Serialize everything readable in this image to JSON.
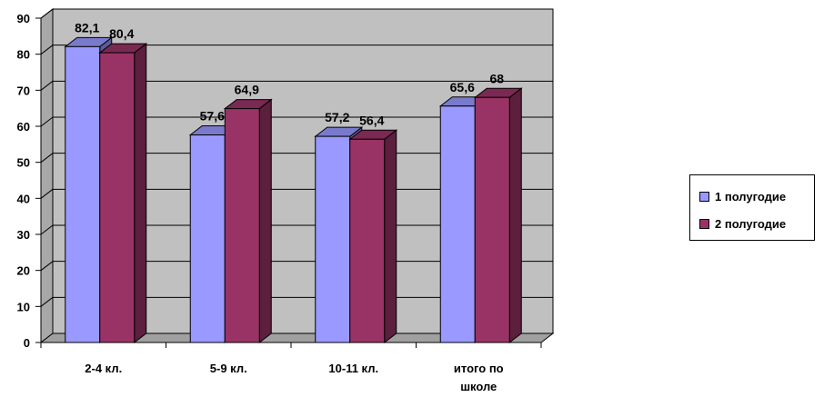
{
  "chart_data": {
    "type": "bar",
    "categories": [
      "2-4 кл.",
      "5-9 кл.",
      "10-11 кл.",
      "итого по школе"
    ],
    "series": [
      {
        "name": "1 полугодие",
        "values": [
          82.1,
          57.6,
          57.2,
          65.6
        ],
        "labels": [
          "82,1",
          "57,6",
          "57,2",
          "65,6"
        ],
        "color": "#9999ff"
      },
      {
        "name": "2 полугодие",
        "values": [
          80.4,
          64.9,
          56.4,
          68
        ],
        "labels": [
          "80,4",
          "64,9",
          "56,4",
          "68"
        ],
        "color": "#993366"
      }
    ],
    "ylim": [
      0,
      90
    ],
    "yticks": [
      "0",
      "10",
      "20",
      "30",
      "40",
      "50",
      "60",
      "70",
      "80",
      "90"
    ],
    "grid": true,
    "style": "3d",
    "legend_position": "right"
  }
}
